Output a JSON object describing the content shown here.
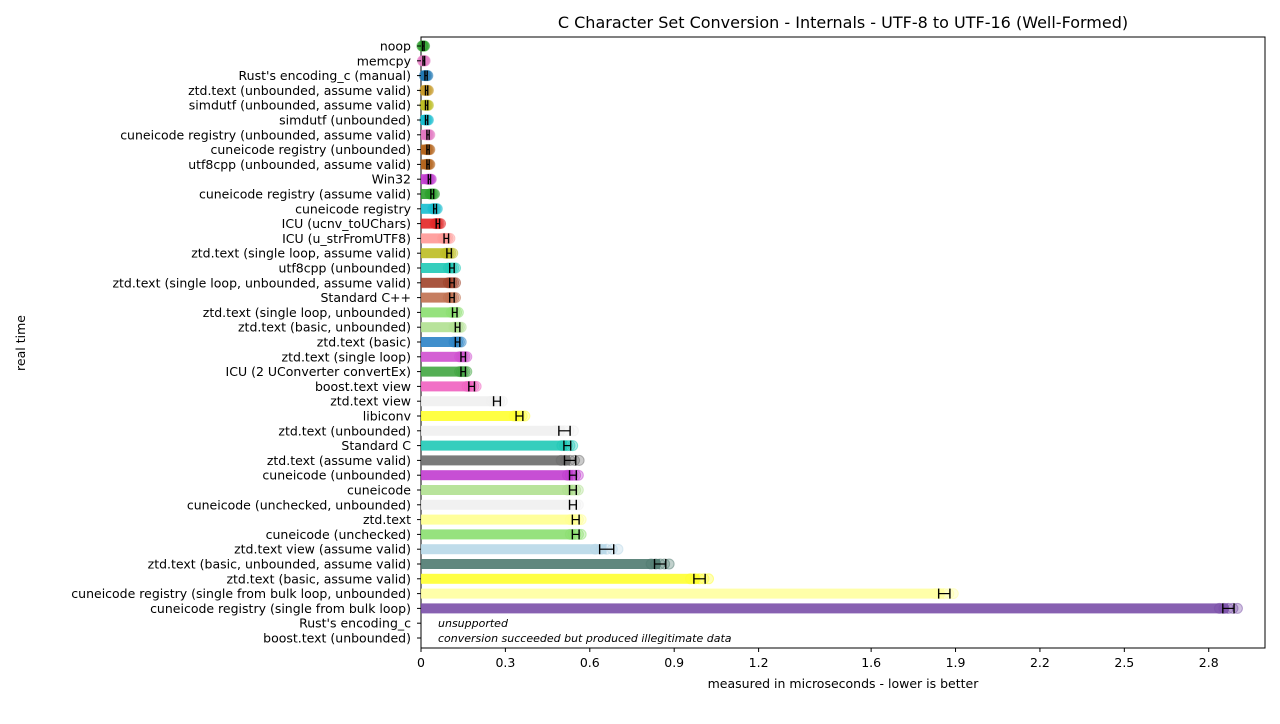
{
  "chart_data": {
    "type": "bar",
    "orientation": "horizontal",
    "title": "C Character Set Conversion - Internals - UTF-8 to UTF-16 (Well-Formed)",
    "xlabel": "measured in microseconds - lower is better",
    "ylabel": "real time",
    "xlim": [
      0,
      3.0
    ],
    "xticks": [
      0,
      0.3,
      0.6,
      0.9,
      1.2,
      1.6,
      1.9,
      2.2,
      2.5,
      2.8
    ],
    "xtick_labels": [
      "0",
      "0.3",
      "0.6",
      "0.9",
      "1.2",
      "1.6",
      "1.9",
      "2.2",
      "2.5",
      "2.8"
    ],
    "grid": false,
    "categories": [
      "noop",
      "memcpy",
      "Rust's encoding_c (manual)",
      "ztd.text (unbounded, assume valid)",
      "simdutf (unbounded, assume valid)",
      "simdutf (unbounded)",
      "cuneicode registry (unbounded, assume valid)",
      "cuneicode registry (unbounded)",
      "utf8cpp (unbounded, assume valid)",
      "Win32",
      "cuneicode registry (assume valid)",
      "cuneicode registry",
      "ICU (ucnv_toUChars)",
      "ICU (u_strFromUTF8)",
      "ztd.text (single loop, assume valid)",
      "utf8cpp (unbounded)",
      "ztd.text (single loop, unbounded, assume valid)",
      "Standard C++",
      "ztd.text (single loop, unbounded)",
      "ztd.text (basic, unbounded)",
      "ztd.text (basic)",
      "ztd.text (single loop)",
      "ICU (2 UConverter convertEx)",
      "boost.text view",
      "ztd.text view",
      "libiconv",
      "ztd.text (unbounded)",
      "Standard C",
      "ztd.text (assume valid)",
      "cuneicode (unbounded)",
      "cuneicode",
      "cuneicode (unchecked, unbounded)",
      "ztd.text",
      "cuneicode (unchecked)",
      "ztd.text view (assume valid)",
      "ztd.text (basic, unbounded, assume valid)",
      "ztd.text (basic, assume valid)",
      "cuneicode registry (single from bulk loop, unbounded)",
      "cuneicode registry (single from bulk loop)",
      "Rust's encoding_c",
      "boost.text (unbounded)"
    ],
    "values": [
      0.008,
      0.01,
      0.018,
      0.02,
      0.02,
      0.02,
      0.025,
      0.025,
      0.025,
      0.03,
      0.04,
      0.05,
      0.06,
      0.09,
      0.1,
      0.11,
      0.11,
      0.11,
      0.12,
      0.13,
      0.13,
      0.15,
      0.15,
      0.18,
      0.27,
      0.35,
      0.51,
      0.52,
      0.53,
      0.54,
      0.54,
      0.54,
      0.55,
      0.55,
      0.66,
      0.85,
      0.99,
      1.86,
      2.87,
      null,
      null
    ],
    "errors": [
      0.003,
      0.003,
      0.004,
      0.004,
      0.004,
      0.004,
      0.004,
      0.004,
      0.004,
      0.004,
      0.005,
      0.005,
      0.006,
      0.008,
      0.008,
      0.008,
      0.008,
      0.008,
      0.008,
      0.008,
      0.008,
      0.008,
      0.008,
      0.01,
      0.012,
      0.012,
      0.02,
      0.012,
      0.02,
      0.012,
      0.012,
      0.012,
      0.012,
      0.012,
      0.025,
      0.02,
      0.02,
      0.02,
      0.02,
      null,
      null
    ],
    "colors": [
      "#2ca02c",
      "#e377c2",
      "#1f77b4",
      "#c79a2a",
      "#bcbd22",
      "#17becf",
      "#e377c2",
      "#b5651d",
      "#b5651d",
      "#c13ccf",
      "#2ca02c",
      "#17becf",
      "#e32626",
      "#ff9896",
      "#bcbd22",
      "#20c9b6",
      "#a0422a",
      "#c07050",
      "#8bdf70",
      "#b0e090",
      "#2b83c6",
      "#cf4fcf",
      "#42a642",
      "#f060c0",
      "#f0f0f0",
      "#ffff30",
      "#f0f0f0",
      "#20c9b6",
      "#6b6b6b",
      "#c13ccf",
      "#b0e090",
      "#f0f0f0",
      "#ffff90",
      "#8bdf70",
      "#b8d8e8",
      "#4f7a70",
      "#ffff30",
      "#ffffa0",
      "#7a4fa8",
      null,
      null
    ],
    "annotations": [
      {
        "category": "Rust's encoding_c",
        "text": "unsupported"
      },
      {
        "category": "boost.text (unbounded)",
        "text": "conversion succeeded but produced illegitimate data"
      }
    ]
  }
}
